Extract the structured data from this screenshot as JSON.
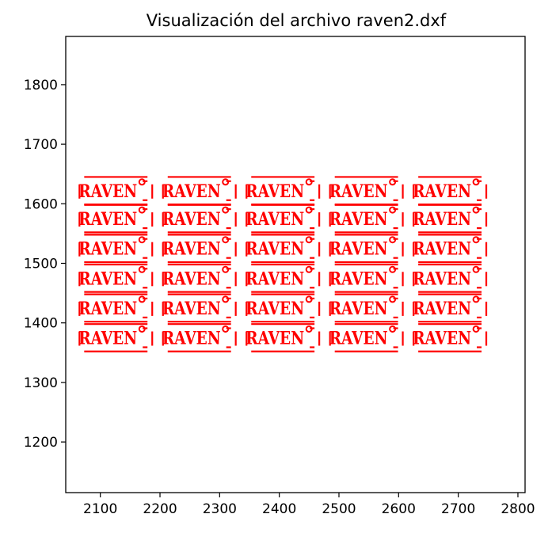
{
  "chart_data": {
    "type": "scatter",
    "title": "Visualización del archivo raven2.dxf",
    "xlabel": "",
    "ylabel": "",
    "xlim": [
      2042,
      2812
    ],
    "ylim": [
      1115,
      1881
    ],
    "xticks": [
      2100,
      2200,
      2300,
      2400,
      2500,
      2600,
      2700,
      2800
    ],
    "yticks": [
      1200,
      1300,
      1400,
      1500,
      1600,
      1700,
      1800
    ],
    "grid": false,
    "series": [
      {
        "color": "#ff0000",
        "shape": "RAVEN logo tile",
        "tile_label": "RAVEN",
        "columns_x": [
          2126,
          2266,
          2406,
          2546,
          2686
        ],
        "rows_y": [
          1622,
          1575,
          1525,
          1475,
          1425,
          1375
        ],
        "tile_width": 122,
        "tile_height": 46
      }
    ]
  }
}
